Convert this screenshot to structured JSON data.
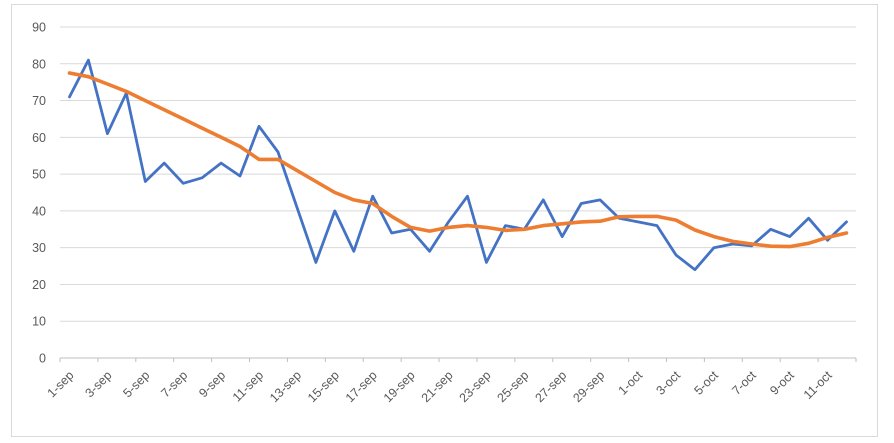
{
  "figure": {
    "title": "",
    "border_color": "#D9D9D9",
    "background_color": "#FFFFFF"
  },
  "chart_data": {
    "type": "line",
    "title": "",
    "xlabel": "",
    "ylabel": "",
    "grid": true,
    "legend": "none",
    "x_tick_labels": [
      "1-sep",
      "3-sep",
      "5-sep",
      "7-sep",
      "9-sep",
      "11-sep",
      "13-sep",
      "15-sep",
      "17-sep",
      "19-sep",
      "21-sep",
      "23-sep",
      "25-sep",
      "27-sep",
      "29-sep",
      "1-oct",
      "3-oct",
      "5-oct",
      "7-oct",
      "9-oct",
      "11-oct"
    ],
    "x_label_every_n_points": 2,
    "n_points": 42,
    "y_axis": {
      "min": 0,
      "max": 90,
      "step": 10,
      "tick_labels": [
        "0",
        "10",
        "20",
        "30",
        "40",
        "50",
        "60",
        "70",
        "80",
        "90"
      ]
    },
    "series": [
      {
        "id": "daily-values-blue",
        "color": "#4472C4",
        "values": [
          71,
          81,
          61,
          72,
          48,
          53,
          47.5,
          49,
          53,
          49.5,
          63,
          56,
          41,
          26,
          40,
          29,
          44,
          34,
          35,
          29,
          37,
          44,
          26,
          36,
          35,
          43,
          33,
          42,
          43,
          38,
          37,
          36,
          28,
          24,
          30,
          31,
          30.5,
          35,
          33,
          38,
          32,
          37
        ]
      },
      {
        "id": "smoothed-trend-orange",
        "color": "#ED7D31",
        "values": [
          77.5,
          76.5,
          74.5,
          72.5,
          70,
          67.5,
          65,
          62.5,
          60,
          57.5,
          54,
          54,
          51,
          48,
          45,
          43,
          42,
          38.5,
          35.5,
          34.5,
          35.5,
          36,
          35.5,
          34.7,
          35,
          36,
          36.5,
          37,
          37.2,
          38.4,
          38.5,
          38.5,
          37.5,
          34.8,
          33,
          31.7,
          31,
          30.4,
          30.3,
          31.2,
          32.8,
          34
        ]
      }
    ],
    "style": {
      "gridline_color": "#D9D9D9",
      "axis_line_color": "#BFBFBF",
      "tick_label_color": "#595959"
    }
  }
}
